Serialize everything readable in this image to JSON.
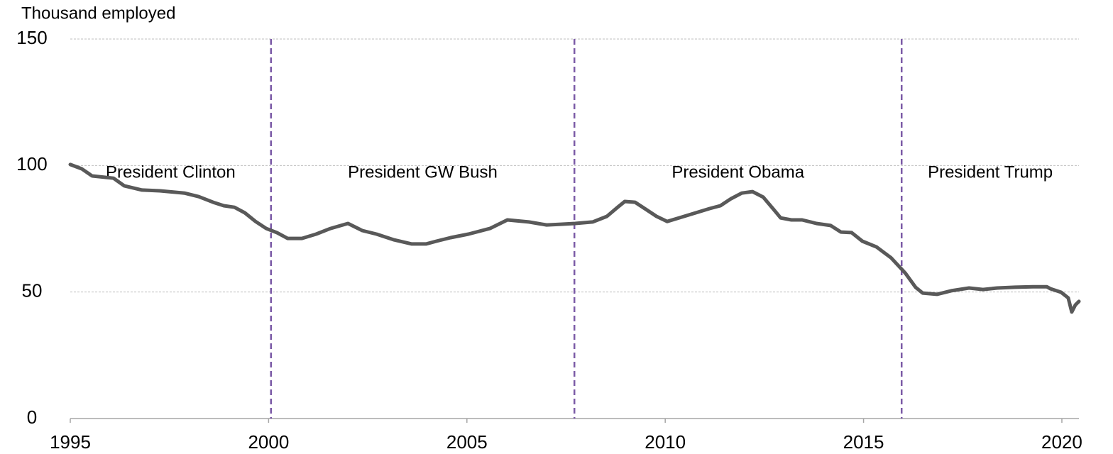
{
  "chart_data": {
    "type": "line",
    "y_label": "Thousand employed",
    "x": [
      1995.0,
      1995.29,
      1995.55,
      1996.09,
      1996.36,
      1996.81,
      1997.26,
      1997.88,
      1998.24,
      1998.6,
      1998.87,
      1999.14,
      1999.4,
      1999.67,
      1999.94,
      2000.21,
      2000.48,
      2000.84,
      2001.2,
      2001.56,
      2002.0,
      2002.36,
      2002.72,
      2003.17,
      2003.61,
      2003.97,
      2004.23,
      2004.59,
      2005.04,
      2005.58,
      2006.02,
      2006.56,
      2007.01,
      2007.37,
      2007.73,
      2008.17,
      2008.53,
      2008.8,
      2008.98,
      2009.24,
      2009.51,
      2009.78,
      2010.05,
      2010.41,
      2010.77,
      2011.12,
      2011.39,
      2011.66,
      2011.93,
      2012.2,
      2012.47,
      2012.73,
      2012.91,
      2013.18,
      2013.45,
      2013.81,
      2014.17,
      2014.43,
      2014.7,
      2014.97,
      2015.33,
      2015.69,
      2016.05,
      2016.31,
      2016.49,
      2016.85,
      2017.21,
      2017.66,
      2018.01,
      2018.37,
      2018.82,
      2019.27,
      2019.62,
      2019.71,
      2019.98,
      2020.16,
      2020.25,
      2020.34,
      2020.43
    ],
    "values": [
      100.4,
      98.7,
      95.9,
      95,
      92,
      90.3,
      90,
      89.1,
      87.7,
      85.5,
      84.1,
      83.5,
      81.3,
      77.9,
      75.1,
      73.5,
      71.2,
      71.2,
      72.9,
      75.1,
      77.1,
      74.3,
      72.9,
      70.6,
      69,
      69,
      70.1,
      71.5,
      72.9,
      75.1,
      78.5,
      77.7,
      76.5,
      76.8,
      77.1,
      77.7,
      79.9,
      83.5,
      85.8,
      85.5,
      82.7,
      79.9,
      77.9,
      79.6,
      81.3,
      83,
      84.1,
      86.9,
      89.1,
      89.7,
      87.5,
      82.7,
      79.3,
      78.5,
      78.5,
      77.1,
      76.3,
      73.7,
      73.5,
      70.1,
      67.8,
      63.6,
      57.5,
      51.9,
      49.6,
      49.1,
      50.5,
      51.6,
      51,
      51.6,
      51.9,
      52.1,
      52.1,
      51.3,
      49.9,
      47.7,
      42.1,
      44.9,
      46.3
    ],
    "color": "#595959",
    "xlim": [
      1995,
      2020.43
    ],
    "xticks": [
      1995,
      2000,
      2005,
      2010,
      2015,
      2020
    ],
    "ylim": [
      0,
      150
    ],
    "yticks": [
      0,
      50,
      100,
      150
    ],
    "grid": true,
    "vlines": [
      2000.06,
      2007.71,
      2015.96
    ],
    "vline_color": "#7b5aa6",
    "period_labels": [
      "President Clinton",
      "President GW Bush",
      "President Obama",
      "President Trump"
    ],
    "period_label_y": 97
  }
}
